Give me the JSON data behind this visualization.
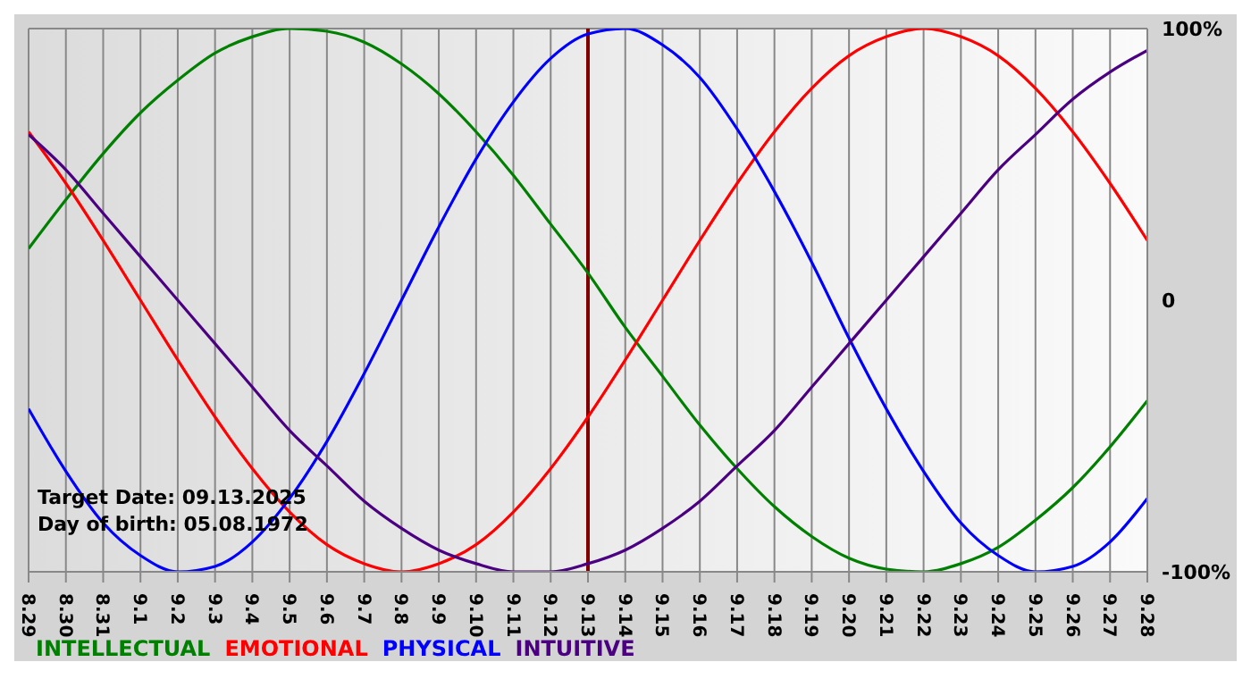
{
  "chart_data": {
    "type": "line",
    "categories": [
      "8.29",
      "8.30",
      "8.31",
      "9.1",
      "9.2",
      "9.3",
      "9.4",
      "9.5",
      "9.6",
      "9.7",
      "9.8",
      "9.9",
      "9.10",
      "9.11",
      "9.12",
      "9.13",
      "9.14",
      "9.15",
      "9.16",
      "9.17",
      "9.18",
      "9.19",
      "9.20",
      "9.21",
      "9.22",
      "9.23",
      "9.24",
      "9.25",
      "9.26",
      "9.27",
      "9.28"
    ],
    "series": [
      {
        "name": "INTELLECTUAL",
        "color": "#008000",
        "values": [
          19,
          37,
          54,
          69,
          81,
          91,
          97,
          100,
          99,
          95,
          87,
          76,
          62,
          46,
          28,
          10,
          -10,
          -28,
          -46,
          -62,
          -76,
          -87,
          -95,
          -99,
          -100,
          -97,
          -91,
          -81,
          -69,
          -54,
          -37
        ]
      },
      {
        "name": "EMOTIONAL",
        "color": "#ff0000",
        "values": [
          62,
          43,
          22,
          0,
          -22,
          -43,
          -62,
          -78,
          -90,
          -97,
          -100,
          -97,
          -90,
          -78,
          -62,
          -43,
          -22,
          0,
          22,
          43,
          62,
          78,
          90,
          97,
          100,
          97,
          90,
          78,
          62,
          43,
          22
        ]
      },
      {
        "name": "PHYSICAL",
        "color": "#0000ff",
        "values": [
          -40,
          -63,
          -82,
          -94,
          -100,
          -98,
          -89,
          -73,
          -52,
          -27,
          0,
          27,
          52,
          73,
          89,
          98,
          100,
          94,
          82,
          63,
          40,
          14,
          -14,
          -40,
          -63,
          -82,
          -94,
          -100,
          -98,
          -89,
          -73
        ]
      },
      {
        "name": "INTUITIVE",
        "color": "#4b0082",
        "values": [
          61,
          48,
          32,
          16,
          0,
          -16,
          -32,
          -48,
          -61,
          -74,
          -84,
          -92,
          -97,
          -100,
          -100,
          -97,
          -92,
          -84,
          -74,
          -61,
          -48,
          -32,
          -16,
          0,
          16,
          32,
          48,
          61,
          74,
          84,
          92
        ]
      }
    ],
    "ylim": [
      -100,
      100
    ],
    "yticks": [
      {
        "value": -100,
        "label": "-100%"
      },
      0,
      {
        "value": 100,
        "label": "100%"
      }
    ],
    "ref_lines": [
      {
        "axis": "x",
        "value": "9.13",
        "color": "#800000"
      }
    ],
    "annotations": [
      "Target Date: 09.13.2025",
      "Day of birth: 05.08.1972"
    ],
    "grid": true,
    "legend": "bottom",
    "line_style": "solid"
  }
}
